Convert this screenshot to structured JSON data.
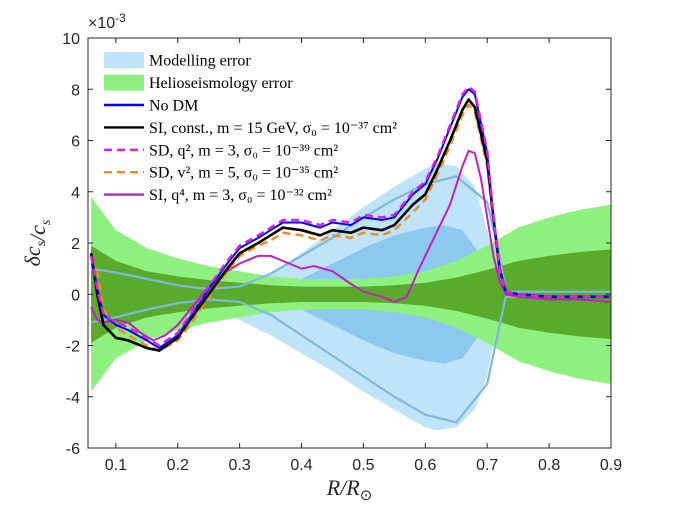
{
  "chart_data": {
    "type": "line",
    "title": "",
    "xlabel": "R/R⊙",
    "ylabel": "δc_s/c_s",
    "y_multiplier": "×10-3",
    "xlim": [
      0.055,
      0.9
    ],
    "ylim": [
      -6,
      10
    ],
    "xticks": [
      0.1,
      0.2,
      0.3,
      0.4,
      0.5,
      0.6,
      0.7,
      0.8,
      0.9
    ],
    "xtick_labels": [
      "0.1",
      "0.2",
      "0.3",
      "0.4",
      "0.5",
      "0.6",
      "0.7",
      "0.8",
      "0.9"
    ],
    "yticks": [
      -6,
      -4,
      -2,
      0,
      2,
      4,
      6,
      8,
      10
    ],
    "ytick_labels": [
      "-6",
      "-4",
      "-2",
      "0",
      "2",
      "4",
      "6",
      "8",
      "10"
    ],
    "legend_position": "top-left",
    "legend": [
      {
        "label": "Modelling error",
        "kind": "patch",
        "color": "#bfe3f8"
      },
      {
        "label": "Helioseismology error",
        "kind": "patch",
        "color": "#8ef07e"
      },
      {
        "label": "No DM",
        "kind": "line",
        "color": "#0000ff",
        "dash": "solid"
      },
      {
        "label": "SI, const., m = 15 GeV, σ₀ = 10⁻³⁷ cm²",
        "kind": "line",
        "color": "#000000",
        "dash": "solid"
      },
      {
        "label": "SD, q², m = 3, σ₀ = 10⁻³⁹ cm²",
        "kind": "line",
        "color": "#e020d8",
        "dash": "dashed"
      },
      {
        "label": "SD, v², m = 5, σ₀ = 10⁻³⁵ cm²",
        "kind": "line",
        "color": "#f08a24",
        "dash": "dashed"
      },
      {
        "label": "SI, q⁴, m = 3, σ₀ = 10⁻³² cm²",
        "kind": "line",
        "color": "#c020c0",
        "dash": "solid"
      }
    ],
    "bands": [
      {
        "name": "Modelling error (outer)",
        "color": "#bfe3f8",
        "x": [
          0.06,
          0.1,
          0.15,
          0.2,
          0.25,
          0.3,
          0.35,
          0.4,
          0.45,
          0.5,
          0.55,
          0.6,
          0.62,
          0.65,
          0.68,
          0.7,
          0.72,
          0.73
        ],
        "upper": [
          1.0,
          0.8,
          0.5,
          0.2,
          0.1,
          0.2,
          0.8,
          1.6,
          2.5,
          3.4,
          4.2,
          4.9,
          5.1,
          5.0,
          4.2,
          2.5,
          0.5,
          0.0
        ],
        "lower": [
          -1.0,
          -0.8,
          -0.5,
          -0.2,
          -0.5,
          -1.0,
          -1.6,
          -2.3,
          -3.0,
          -3.8,
          -4.5,
          -5.2,
          -5.3,
          -5.2,
          -4.5,
          -3.2,
          -0.5,
          0.0
        ]
      },
      {
        "name": "Modelling error (inner)",
        "color": "#8dc8ee",
        "x": [
          0.4,
          0.45,
          0.5,
          0.55,
          0.6,
          0.63,
          0.66,
          0.69,
          0.71
        ],
        "upper": [
          0.6,
          1.2,
          1.8,
          2.3,
          2.6,
          2.7,
          2.5,
          1.5,
          0.3
        ],
        "lower": [
          -0.6,
          -1.2,
          -1.8,
          -2.3,
          -2.6,
          -2.7,
          -2.5,
          -1.5,
          -0.3
        ]
      },
      {
        "name": "Helioseismology error (outer)",
        "color": "#8ef07e",
        "x": [
          0.06,
          0.1,
          0.15,
          0.2,
          0.25,
          0.3,
          0.35,
          0.4,
          0.45,
          0.5,
          0.55,
          0.6,
          0.65,
          0.7,
          0.75,
          0.8,
          0.85,
          0.9
        ],
        "upper": [
          3.8,
          2.5,
          1.8,
          1.4,
          1.1,
          0.9,
          0.7,
          0.6,
          0.6,
          0.6,
          0.7,
          0.9,
          1.3,
          1.9,
          2.6,
          3.0,
          3.3,
          3.5
        ],
        "lower": [
          -3.8,
          -2.5,
          -1.8,
          -1.4,
          -1.1,
          -0.9,
          -0.7,
          -0.6,
          -0.6,
          -0.6,
          -0.7,
          -0.9,
          -1.3,
          -1.9,
          -2.6,
          -3.0,
          -3.3,
          -3.5
        ]
      },
      {
        "name": "Helioseismology error (inner)",
        "color": "#5aaa2c",
        "x": [
          0.06,
          0.1,
          0.15,
          0.2,
          0.25,
          0.3,
          0.35,
          0.4,
          0.45,
          0.5,
          0.55,
          0.6,
          0.65,
          0.7,
          0.75,
          0.8,
          0.85,
          0.9
        ],
        "upper": [
          1.9,
          1.3,
          0.9,
          0.7,
          0.55,
          0.45,
          0.35,
          0.3,
          0.3,
          0.3,
          0.35,
          0.45,
          0.65,
          0.95,
          1.3,
          1.5,
          1.65,
          1.75
        ],
        "lower": [
          -1.9,
          -1.3,
          -0.9,
          -0.7,
          -0.55,
          -0.45,
          -0.35,
          -0.3,
          -0.3,
          -0.3,
          -0.35,
          -0.45,
          -0.65,
          -0.95,
          -1.3,
          -1.5,
          -1.65,
          -1.75
        ]
      }
    ],
    "boundary_lines": [
      {
        "name": "Modelling band upper edge",
        "color": "#7fb8dd",
        "x": [
          0.06,
          0.1,
          0.15,
          0.2,
          0.25,
          0.3,
          0.35,
          0.4,
          0.45,
          0.5,
          0.55,
          0.6,
          0.65,
          0.7,
          0.72,
          0.73,
          0.8,
          0.9
        ],
        "y": [
          1.0,
          0.85,
          0.6,
          0.35,
          0.2,
          0.3,
          0.8,
          1.5,
          2.2,
          3.0,
          3.7,
          4.3,
          4.6,
          3.6,
          1.5,
          0.1,
          0.1,
          0.1
        ]
      },
      {
        "name": "Modelling band lower edge",
        "color": "#7fb8dd",
        "x": [
          0.06,
          0.1,
          0.15,
          0.2,
          0.25,
          0.3,
          0.35,
          0.4,
          0.45,
          0.5,
          0.55,
          0.6,
          0.65,
          0.7,
          0.72,
          0.73,
          0.8,
          0.9
        ],
        "y": [
          -1.1,
          -0.9,
          -0.6,
          -0.35,
          -0.2,
          -0.3,
          -0.8,
          -1.6,
          -2.4,
          -3.2,
          -4.0,
          -4.7,
          -5.0,
          -3.5,
          -1.2,
          -0.1,
          -0.1,
          -0.1
        ]
      }
    ],
    "series": [
      {
        "name": "No DM",
        "color": "#0000ff",
        "dash": "solid",
        "width": 2,
        "x": [
          0.06,
          0.07,
          0.08,
          0.1,
          0.12,
          0.15,
          0.17,
          0.2,
          0.22,
          0.25,
          0.28,
          0.3,
          0.33,
          0.35,
          0.37,
          0.4,
          0.43,
          0.45,
          0.48,
          0.5,
          0.53,
          0.55,
          0.58,
          0.6,
          0.62,
          0.64,
          0.66,
          0.67,
          0.68,
          0.7,
          0.71,
          0.72,
          0.73,
          0.75,
          0.8,
          0.85,
          0.9
        ],
        "y": [
          1.5,
          0.2,
          -0.8,
          -1.2,
          -1.4,
          -1.8,
          -2.1,
          -1.6,
          -0.9,
          0.2,
          1.2,
          1.8,
          2.2,
          2.5,
          2.8,
          2.8,
          2.6,
          2.8,
          2.7,
          3.0,
          2.9,
          3.0,
          3.9,
          4.3,
          5.3,
          6.5,
          7.7,
          8.0,
          7.8,
          5.5,
          3.0,
          1.0,
          0.1,
          0.0,
          -0.1,
          -0.1,
          -0.1
        ]
      },
      {
        "name": "SI, const., m = 15 GeV",
        "color": "#000000",
        "dash": "solid",
        "width": 2.6,
        "x": [
          0.06,
          0.07,
          0.08,
          0.1,
          0.12,
          0.15,
          0.17,
          0.2,
          0.22,
          0.25,
          0.28,
          0.3,
          0.33,
          0.35,
          0.37,
          0.4,
          0.43,
          0.45,
          0.48,
          0.5,
          0.53,
          0.55,
          0.58,
          0.6,
          0.62,
          0.64,
          0.66,
          0.67,
          0.68,
          0.7,
          0.71,
          0.72,
          0.73,
          0.75,
          0.8,
          0.85,
          0.9
        ],
        "y": [
          1.6,
          0.0,
          -1.2,
          -1.7,
          -1.8,
          -2.1,
          -2.2,
          -1.7,
          -1.0,
          0.0,
          1.0,
          1.6,
          2.0,
          2.3,
          2.6,
          2.5,
          2.3,
          2.5,
          2.4,
          2.6,
          2.5,
          2.7,
          3.5,
          3.9,
          4.9,
          6.0,
          7.2,
          7.6,
          7.3,
          5.2,
          3.0,
          1.0,
          0.1,
          0.0,
          -0.1,
          -0.1,
          -0.1
        ]
      },
      {
        "name": "SD, q2, m = 3",
        "color": "#e020d8",
        "dash": "dashed",
        "width": 2.4,
        "x": [
          0.06,
          0.07,
          0.08,
          0.1,
          0.12,
          0.15,
          0.17,
          0.2,
          0.22,
          0.25,
          0.28,
          0.3,
          0.33,
          0.35,
          0.37,
          0.4,
          0.43,
          0.45,
          0.48,
          0.5,
          0.53,
          0.55,
          0.58,
          0.6,
          0.62,
          0.64,
          0.66,
          0.67,
          0.68,
          0.7,
          0.71,
          0.72,
          0.73,
          0.75,
          0.8,
          0.85,
          0.9
        ],
        "y": [
          1.5,
          0.2,
          -0.8,
          -1.1,
          -1.3,
          -1.7,
          -2.0,
          -1.5,
          -0.8,
          0.3,
          1.3,
          1.9,
          2.3,
          2.6,
          2.9,
          2.9,
          2.7,
          2.9,
          2.8,
          3.1,
          3.0,
          3.1,
          4.0,
          4.4,
          5.4,
          6.6,
          7.8,
          8.1,
          7.9,
          5.6,
          3.1,
          1.0,
          0.1,
          0.0,
          -0.1,
          -0.1,
          -0.1
        ]
      },
      {
        "name": "SD, v2, m = 5",
        "color": "#f08a24",
        "dash": "dashed",
        "width": 2.4,
        "x": [
          0.06,
          0.07,
          0.08,
          0.1,
          0.12,
          0.15,
          0.17,
          0.2,
          0.22,
          0.25,
          0.28,
          0.3,
          0.33,
          0.35,
          0.37,
          0.4,
          0.43,
          0.45,
          0.48,
          0.5,
          0.53,
          0.55,
          0.58,
          0.6,
          0.62,
          0.64,
          0.66,
          0.67,
          0.68,
          0.7,
          0.71,
          0.72,
          0.73,
          0.75,
          0.8,
          0.85,
          0.9
        ],
        "y": [
          1.4,
          0.9,
          -0.6,
          -1.3,
          -1.6,
          -2.0,
          -2.2,
          -1.8,
          -1.2,
          -0.1,
          0.9,
          1.5,
          1.9,
          2.1,
          2.4,
          2.3,
          2.1,
          2.3,
          2.2,
          2.4,
          2.3,
          2.5,
          3.2,
          3.7,
          4.7,
          5.8,
          7.0,
          7.4,
          7.1,
          5.0,
          2.8,
          0.9,
          0.1,
          0.0,
          -0.1,
          -0.1,
          -0.1
        ]
      },
      {
        "name": "SI, q4, m = 3",
        "color": "#c020c0",
        "dash": "solid",
        "width": 2,
        "x": [
          0.06,
          0.07,
          0.08,
          0.1,
          0.12,
          0.14,
          0.16,
          0.18,
          0.2,
          0.22,
          0.25,
          0.28,
          0.3,
          0.33,
          0.35,
          0.38,
          0.4,
          0.42,
          0.45,
          0.48,
          0.5,
          0.53,
          0.55,
          0.57,
          0.59,
          0.62,
          0.64,
          0.66,
          0.67,
          0.68,
          0.69,
          0.7,
          0.71,
          0.72,
          0.73,
          0.75,
          0.8,
          0.85,
          0.9
        ],
        "y": [
          -0.5,
          -1.0,
          -1.1,
          -1.0,
          -1.1,
          -1.5,
          -1.8,
          -1.6,
          -1.2,
          -0.6,
          0.3,
          0.9,
          1.2,
          1.5,
          1.5,
          1.2,
          1.0,
          1.1,
          0.9,
          0.4,
          0.1,
          -0.1,
          -0.3,
          -0.1,
          1.0,
          2.5,
          3.5,
          5.0,
          5.6,
          5.5,
          4.5,
          3.0,
          1.5,
          0.5,
          0.0,
          -0.1,
          -0.2,
          -0.2,
          -0.3
        ]
      }
    ]
  }
}
